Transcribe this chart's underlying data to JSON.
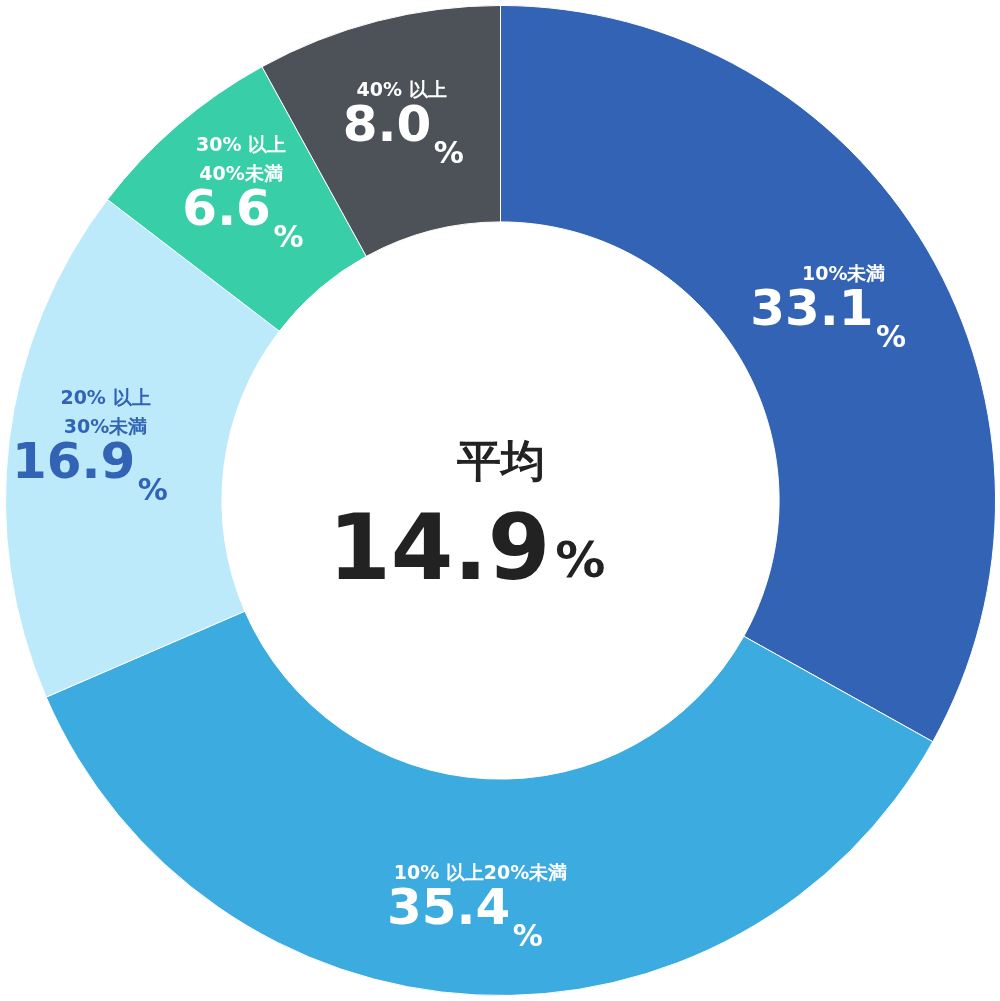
{
  "chart_data": {
    "type": "donut",
    "categories": [
      "10%未満",
      "10% 以上20%未満",
      "20% 以上\n30%未満",
      "30% 以上\n40%未満",
      "40% 以上"
    ],
    "values": [
      33.1,
      35.4,
      16.9,
      6.6,
      8.0
    ],
    "colors": [
      "#3263b5",
      "#3babe0",
      "#bdeafb",
      "#38cfa8",
      "#4d5258"
    ],
    "value_labels": [
      "33.1%",
      "35.4%",
      "16.9%",
      "6.6%",
      "8.0%"
    ],
    "annotations": [
      "平均",
      "14.9%"
    ]
  }
}
